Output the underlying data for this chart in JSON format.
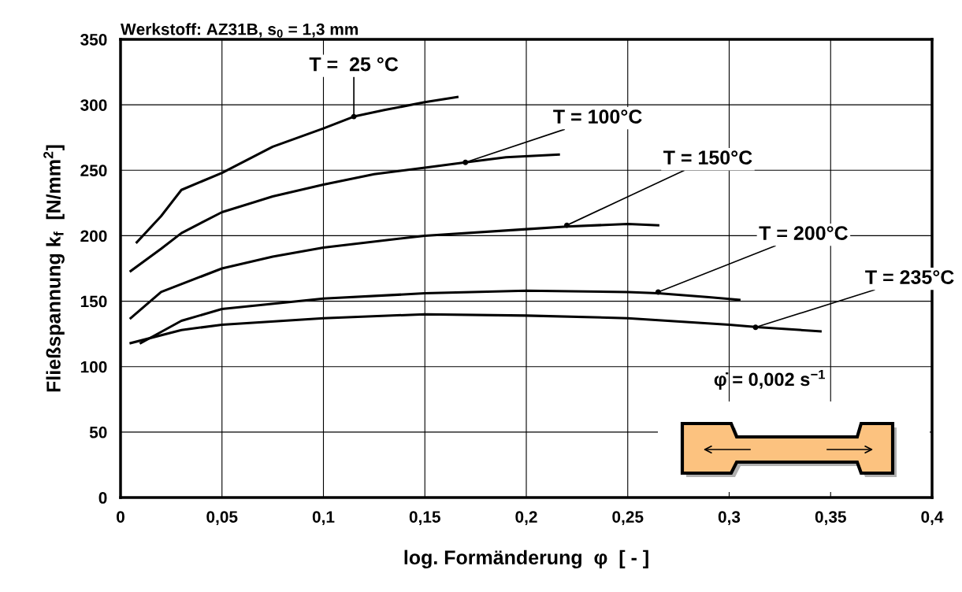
{
  "chart_data": {
    "type": "line",
    "title": "Werkstoff: AZ31B, s$_{0}$ = 1,3 mm",
    "xlabel": "log. Formänderung  φ  [ - ]",
    "ylabel": "Fließspannung k$_{f}$  [N/mm$^{2}$]",
    "xlim": [
      0,
      0.4
    ],
    "ylim": [
      0,
      350
    ],
    "xticks": [
      0,
      {
        "value": 0.05,
        "label": "0,05"
      },
      {
        "value": 0.1,
        "label": "0,1"
      },
      {
        "value": 0.15,
        "label": "0,15"
      },
      {
        "value": 0.2,
        "label": "0,2"
      },
      {
        "value": 0.25,
        "label": "0,25"
      },
      {
        "value": 0.3,
        "label": "0,3"
      },
      {
        "value": 0.35,
        "label": "0,35"
      },
      {
        "value": 0.4,
        "label": "0,4"
      }
    ],
    "yticks": [
      0,
      50,
      100,
      150,
      200,
      250,
      300,
      350
    ],
    "grid": true,
    "legend": false,
    "marker": "none",
    "line_style": "solid",
    "series": [
      {
        "color": "#000000",
        "x": [
          0.008,
          0.02,
          0.03,
          0.05,
          0.075,
          0.1,
          0.115,
          0.13,
          0.15,
          0.166
        ],
        "values": [
          195,
          215,
          235,
          248,
          268,
          282,
          291,
          296,
          302,
          306
        ]
      },
      {
        "color": "#000000",
        "x": [
          0.005,
          0.02,
          0.03,
          0.05,
          0.075,
          0.1,
          0.125,
          0.15,
          0.17,
          0.19,
          0.216
        ],
        "values": [
          173,
          190,
          202,
          218,
          230,
          239,
          247,
          252,
          256,
          260,
          262
        ]
      },
      {
        "color": "#000000",
        "x": [
          0.005,
          0.02,
          0.05,
          0.075,
          0.1,
          0.15,
          0.2,
          0.22,
          0.25,
          0.265
        ],
        "values": [
          137,
          157,
          175,
          184,
          191,
          200,
          205,
          207,
          209,
          208
        ]
      },
      {
        "color": "#000000",
        "x": [
          0.01,
          0.03,
          0.05,
          0.1,
          0.15,
          0.2,
          0.25,
          0.265,
          0.29,
          0.305
        ],
        "values": [
          118,
          135,
          144,
          152,
          156,
          158,
          157,
          156,
          153,
          151
        ]
      },
      {
        "color": "#000000",
        "x": [
          0.005,
          0.03,
          0.05,
          0.1,
          0.15,
          0.2,
          0.25,
          0.3,
          0.315,
          0.345
        ],
        "values": [
          118,
          128,
          132,
          137,
          140,
          139,
          137,
          132,
          130,
          127
        ]
      }
    ],
    "annotations": [
      {
        "text": "T =  25 °C",
        "x": 0.115,
        "y": 291
      },
      {
        "text": "T = 100°C",
        "x": 0.17,
        "y": 256
      },
      {
        "text": "T = 150°C",
        "x": 0.22,
        "y": 208
      },
      {
        "text": "T = 200°C",
        "x": 0.265,
        "y": 157
      },
      {
        "text": "T = 235°C",
        "x": 0.313,
        "y": 130
      },
      "φ̇ = 0,002 s$^{−1}$"
    ]
  }
}
